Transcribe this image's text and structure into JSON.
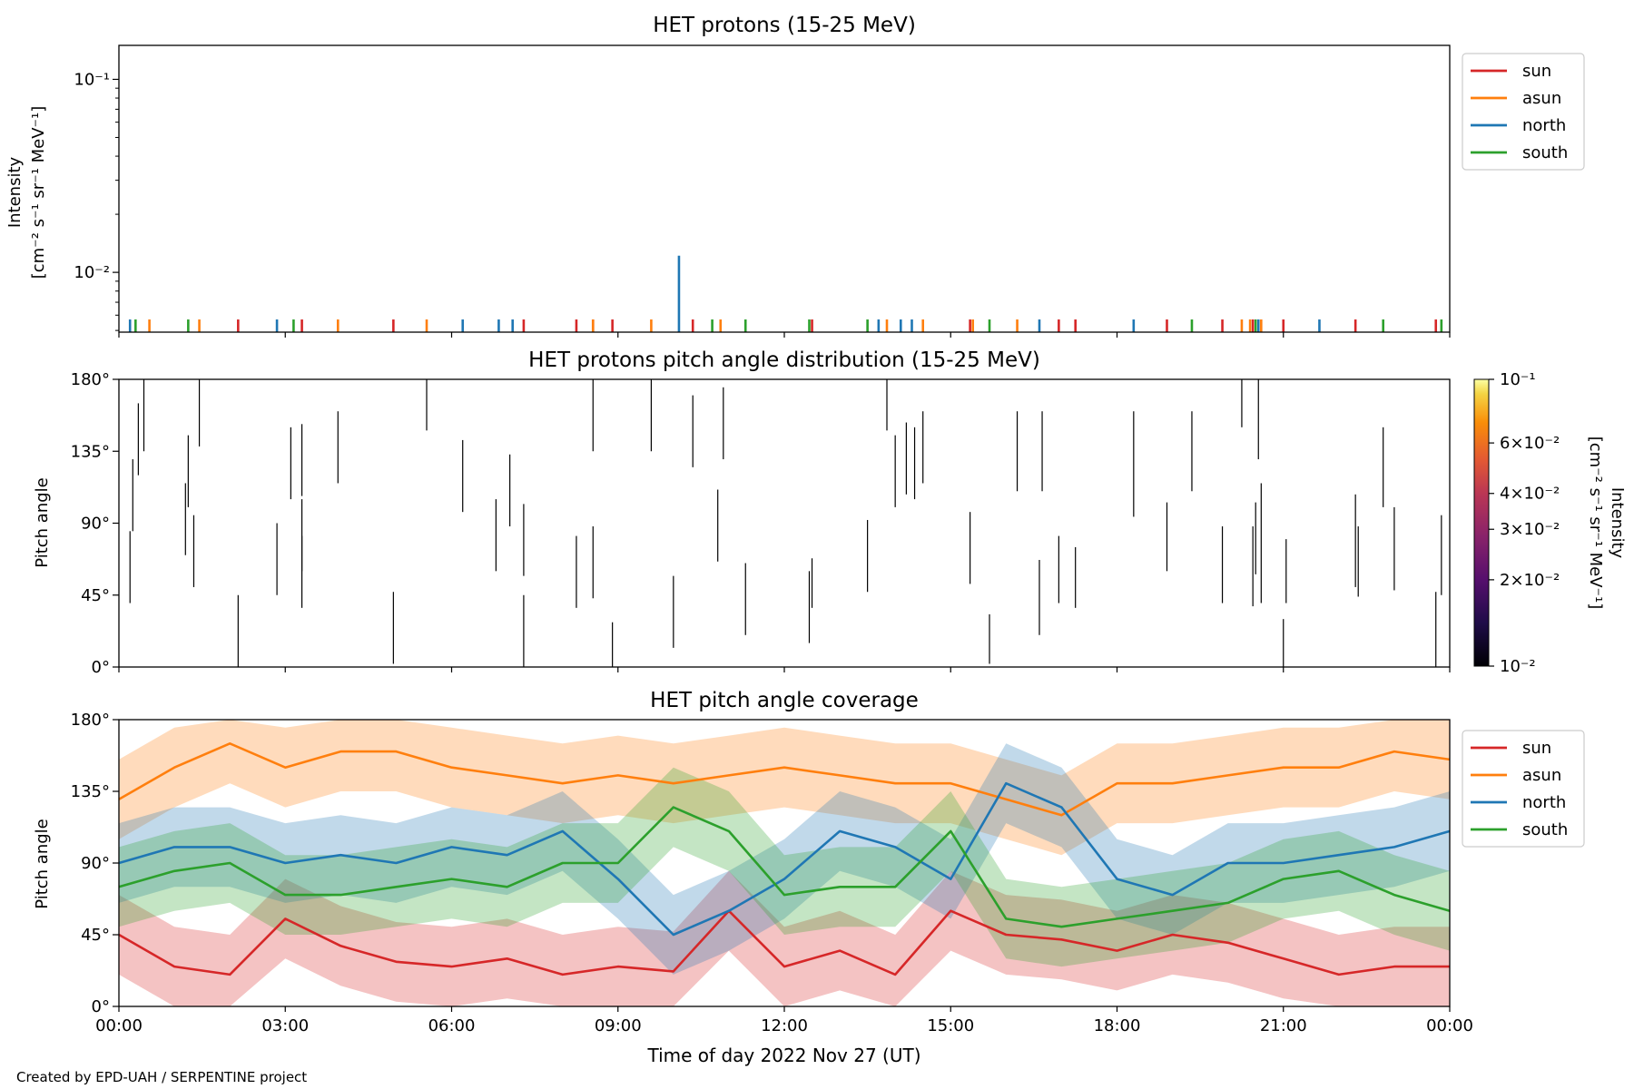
{
  "credit": "Created by EPD-UAH / SERPENTINE project",
  "chart_data": [
    {
      "id": "intensity",
      "type": "bar",
      "title": "HET protons (15-25 MeV)",
      "ylabel_line1": "Intensity",
      "ylabel_line2": "[cm⁻² s⁻¹ sr⁻¹ MeV⁻¹]",
      "yscale": "log",
      "ylim": [
        0.0049,
        0.15
      ],
      "yticks": [
        {
          "value": 0.01,
          "label": "10⁻²"
        },
        {
          "value": 0.1,
          "label": "10⁻¹"
        }
      ],
      "xlim_hours": [
        0,
        24
      ],
      "legend_placement": "outside-right-top",
      "series": [
        {
          "name": "sun",
          "color": "#d62728",
          "x_hours": [
            2.15,
            3.3,
            4.95,
            7.3,
            8.25,
            8.55,
            8.9,
            10.35,
            12.5,
            15.35,
            16.95,
            17.25,
            18.9,
            19.9,
            20.45,
            21.0,
            22.3,
            23.75
          ],
          "values": [
            0.0057,
            0.0057,
            0.0057,
            0.0057,
            0.0057,
            0.0057,
            0.0057,
            0.0057,
            0.0057,
            0.0057,
            0.0057,
            0.0057,
            0.0057,
            0.0057,
            0.0057,
            0.0057,
            0.0057,
            0.0057
          ]
        },
        {
          "name": "asun",
          "color": "#ff7f0e",
          "x_hours": [
            0.55,
            1.45,
            3.95,
            5.55,
            8.55,
            9.6,
            10.85,
            13.85,
            14.5,
            15.4,
            16.2,
            20.25,
            20.4,
            20.6
          ],
          "values": [
            0.0057,
            0.0057,
            0.0057,
            0.0057,
            0.0057,
            0.0057,
            0.0057,
            0.0057,
            0.0057,
            0.0057,
            0.0057,
            0.0057,
            0.0057,
            0.0057
          ]
        },
        {
          "name": "north",
          "color": "#1f77b4",
          "x_hours": [
            0.2,
            2.85,
            6.2,
            6.85,
            7.1,
            10.1,
            13.7,
            14.1,
            14.3,
            16.6,
            18.3,
            20.55,
            21.65
          ],
          "values": [
            0.0057,
            0.0057,
            0.0057,
            0.0057,
            0.0057,
            0.0122,
            0.0057,
            0.0057,
            0.0057,
            0.0057,
            0.0057,
            0.0057,
            0.0057
          ]
        },
        {
          "name": "south",
          "color": "#2ca02c",
          "x_hours": [
            0.3,
            1.25,
            3.15,
            10.7,
            11.3,
            12.45,
            13.5,
            15.7,
            19.35,
            20.5,
            22.8,
            23.85
          ],
          "values": [
            0.0057,
            0.0057,
            0.0057,
            0.0057,
            0.0057,
            0.0057,
            0.0057,
            0.0057,
            0.0057,
            0.0057,
            0.0057,
            0.0057
          ]
        }
      ]
    },
    {
      "id": "pad",
      "type": "heatmap",
      "title": "HET protons pitch angle distribution (15-25 MeV)",
      "ylabel": "Pitch angle",
      "ylim": [
        0,
        180
      ],
      "yticks": [
        "0°",
        "45°",
        "90°",
        "135°",
        "180°"
      ],
      "xlim_hours": [
        0,
        24
      ],
      "colorbar": {
        "label_line1": "Intensity",
        "label_line2": "[cm⁻² s⁻¹ sr⁻¹ MeV⁻¹]",
        "scale": "log",
        "range": [
          0.01,
          0.1
        ],
        "ticks": [
          {
            "value": 0.01,
            "label": "10⁻²"
          },
          {
            "value": 0.02,
            "label": "2×10⁻²"
          },
          {
            "value": 0.03,
            "label": "3×10⁻²"
          },
          {
            "value": 0.04,
            "label": "4×10⁻²"
          },
          {
            "value": 0.06,
            "label": "6×10⁻²"
          },
          {
            "value": 0.1,
            "label": "10⁻¹"
          }
        ]
      },
      "segments_hours_deg": [
        [
          0.2,
          40,
          85
        ],
        [
          0.25,
          85,
          130
        ],
        [
          0.35,
          120,
          165
        ],
        [
          0.45,
          135,
          180
        ],
        [
          1.2,
          70,
          115
        ],
        [
          1.25,
          100,
          145
        ],
        [
          1.35,
          50,
          95
        ],
        [
          1.45,
          138,
          180
        ],
        [
          2.15,
          0,
          45
        ],
        [
          2.85,
          45,
          90
        ],
        [
          3.1,
          105,
          150
        ],
        [
          3.3,
          37,
          82
        ],
        [
          3.3,
          60,
          105
        ],
        [
          3.3,
          107,
          152
        ],
        [
          3.95,
          115,
          160
        ],
        [
          4.95,
          2,
          47
        ],
        [
          5.55,
          148,
          180
        ],
        [
          6.2,
          97,
          142
        ],
        [
          6.8,
          60,
          105
        ],
        [
          7.05,
          88,
          133
        ],
        [
          7.3,
          57,
          102
        ],
        [
          7.3,
          0,
          45
        ],
        [
          8.25,
          37,
          82
        ],
        [
          8.55,
          43,
          88
        ],
        [
          8.55,
          135,
          180
        ],
        [
          8.9,
          0,
          28
        ],
        [
          9.6,
          135,
          180
        ],
        [
          10.0,
          12,
          57
        ],
        [
          10.35,
          125,
          170
        ],
        [
          10.8,
          66,
          111
        ],
        [
          10.9,
          130,
          175
        ],
        [
          11.3,
          20,
          65
        ],
        [
          12.45,
          15,
          60
        ],
        [
          12.5,
          37,
          68
        ],
        [
          13.5,
          47,
          92
        ],
        [
          13.85,
          148,
          180
        ],
        [
          14.0,
          100,
          145
        ],
        [
          14.2,
          108,
          153
        ],
        [
          14.35,
          105,
          150
        ],
        [
          14.5,
          115,
          160
        ],
        [
          15.35,
          52,
          97
        ],
        [
          15.7,
          2,
          33
        ],
        [
          16.2,
          110,
          160
        ],
        [
          16.6,
          20,
          67
        ],
        [
          16.65,
          110,
          160
        ],
        [
          16.95,
          40,
          82
        ],
        [
          17.25,
          37,
          75
        ],
        [
          18.3,
          94,
          160
        ],
        [
          18.9,
          60,
          103
        ],
        [
          19.35,
          110,
          160
        ],
        [
          19.9,
          40,
          88
        ],
        [
          20.25,
          150,
          180
        ],
        [
          20.45,
          38,
          88
        ],
        [
          20.5,
          58,
          103
        ],
        [
          20.55,
          130,
          180
        ],
        [
          20.6,
          40,
          115
        ],
        [
          21.0,
          0,
          30
        ],
        [
          21.05,
          40,
          80
        ],
        [
          22.3,
          50,
          108
        ],
        [
          22.35,
          44,
          88
        ],
        [
          22.8,
          100,
          150
        ],
        [
          23.0,
          48,
          100
        ],
        [
          23.75,
          0,
          47
        ],
        [
          23.85,
          45,
          95
        ]
      ]
    },
    {
      "id": "coverage",
      "type": "line",
      "title": "HET pitch angle coverage",
      "ylabel": "Pitch angle",
      "xlabel": "Time of day 2022 Nov 27 (UT)",
      "ylim": [
        0,
        180
      ],
      "yticks": [
        "0°",
        "45°",
        "90°",
        "135°",
        "180°"
      ],
      "xlim_hours": [
        0,
        24
      ],
      "xticks": [
        "00:00",
        "03:00",
        "06:00",
        "09:00",
        "12:00",
        "15:00",
        "18:00",
        "21:00",
        "00:00"
      ],
      "band_halfwidth_deg": 25,
      "legend_placement": "outside-right-top",
      "series": [
        {
          "name": "sun",
          "color": "#d62728",
          "x_hours": [
            0,
            1,
            2,
            3,
            4,
            5,
            6,
            7,
            8,
            9,
            10,
            11,
            12,
            13,
            14,
            15,
            16,
            17,
            18,
            19,
            20,
            21,
            22,
            23,
            24
          ],
          "values": [
            45,
            25,
            20,
            55,
            38,
            28,
            25,
            30,
            20,
            25,
            22,
            60,
            25,
            35,
            20,
            60,
            45,
            42,
            35,
            45,
            40,
            30,
            20,
            25,
            25
          ]
        },
        {
          "name": "asun",
          "color": "#ff7f0e",
          "x_hours": [
            0,
            1,
            2,
            3,
            4,
            5,
            6,
            7,
            8,
            9,
            10,
            11,
            12,
            13,
            14,
            15,
            16,
            17,
            18,
            19,
            20,
            21,
            22,
            23,
            24
          ],
          "values": [
            130,
            150,
            165,
            150,
            160,
            160,
            150,
            145,
            140,
            145,
            140,
            145,
            150,
            145,
            140,
            140,
            130,
            120,
            140,
            140,
            145,
            150,
            150,
            160,
            155
          ]
        },
        {
          "name": "north",
          "color": "#1f77b4",
          "x_hours": [
            0,
            1,
            2,
            3,
            4,
            5,
            6,
            7,
            8,
            9,
            10,
            11,
            12,
            13,
            14,
            15,
            16,
            17,
            18,
            19,
            20,
            21,
            22,
            23,
            24
          ],
          "values": [
            90,
            100,
            100,
            90,
            95,
            90,
            100,
            95,
            110,
            80,
            45,
            60,
            80,
            110,
            100,
            80,
            140,
            125,
            80,
            70,
            90,
            90,
            95,
            100,
            110
          ]
        },
        {
          "name": "south",
          "color": "#2ca02c",
          "x_hours": [
            0,
            1,
            2,
            3,
            4,
            5,
            6,
            7,
            8,
            9,
            10,
            11,
            12,
            13,
            14,
            15,
            16,
            17,
            18,
            19,
            20,
            21,
            22,
            23,
            24
          ],
          "values": [
            75,
            85,
            90,
            70,
            70,
            75,
            80,
            75,
            90,
            90,
            125,
            110,
            70,
            75,
            75,
            110,
            55,
            50,
            55,
            60,
            65,
            80,
            85,
            70,
            60
          ]
        }
      ]
    }
  ]
}
